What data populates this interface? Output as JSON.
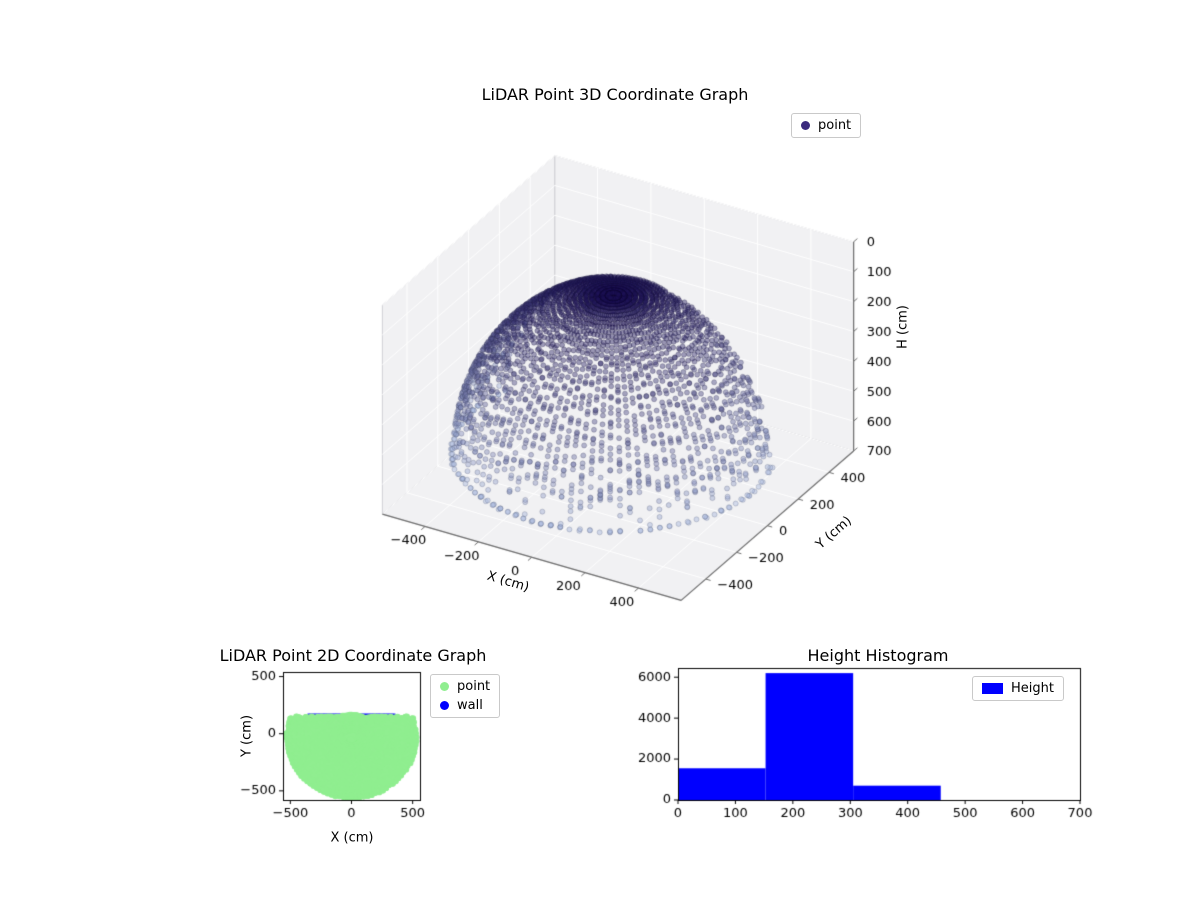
{
  "chart_data": [
    {
      "id": "lidar_3d",
      "type": "scatter3d",
      "title": "LiDAR Point 3D Coordinate Graph",
      "xlabel": "X (cm)",
      "ylabel": "Y (cm)",
      "zlabel": "H (cm)",
      "xlim": [
        -560,
        560
      ],
      "ylim": [
        -560,
        560
      ],
      "zlim": [
        0,
        700
      ],
      "zaxis_inverted": true,
      "xticks": [
        -400,
        -200,
        0,
        200,
        400
      ],
      "yticks": [
        -400,
        -200,
        0,
        200,
        400
      ],
      "zticks": [
        0,
        100,
        200,
        300,
        400,
        500,
        600,
        700
      ],
      "view": {
        "elev": 30,
        "azim": -60
      },
      "grid": true,
      "pane_color": "#f1f1f3",
      "grid_color": "#ffffff",
      "edge_color": "#cfcfd4",
      "spine_color": "#6f6f6f",
      "legend": {
        "position": "upper right",
        "items": [
          {
            "label": "point",
            "color": "#3b2a7d",
            "marker": "circle"
          }
        ]
      },
      "point_cloud": {
        "description": "LiDAR hemispherical scan dome; points colored dark indigo near H=60 (top) fading to light blue near H=580 (rim), with an open sector facing +Y",
        "center_xy": [
          0,
          -30
        ],
        "radius_cm": 520,
        "rim_height_cm": 580,
        "apex_height_cm": 60,
        "azimuth_step_deg": 3.6,
        "elev_min_deg": 2,
        "elev_max_deg": 88,
        "elev_step_deg": 2,
        "open_sector": {
          "y_greater_than": 150,
          "except_above_elev_deg": 68
        },
        "color_top": "#1d1257",
        "color_rim": "#a9b9de",
        "alpha": 0.45,
        "marker_radius_px": 2.5,
        "seed": 7
      }
    },
    {
      "id": "lidar_2d",
      "type": "scatter",
      "title": "LiDAR Point 2D Coordinate Graph",
      "xlabel": "X (cm)",
      "ylabel": "Y (cm)",
      "xlim": [
        -560,
        560
      ],
      "ylim": [
        -580,
        540
      ],
      "xticks": [
        -500,
        0,
        500
      ],
      "yticks": [
        -500,
        0,
        500
      ],
      "legend": {
        "position": "outside upper right",
        "items": [
          {
            "label": "point",
            "color": "#90ee90",
            "marker": "circle"
          },
          {
            "label": "wall",
            "color": "#0000ff",
            "marker": "circle"
          }
        ]
      },
      "series": [
        {
          "name": "wall",
          "color": "#0000ff",
          "marker_radius_px": 2.8,
          "geometry": {
            "line_y": 152,
            "x_from": -350,
            "x_to": 350,
            "step": 14
          }
        },
        {
          "name": "point",
          "color": "#90ee90",
          "marker_radius_px": 3.2,
          "geometry": "xy projection of the 3D dome point cloud (filled half-disc from about y=150 down to y=-550, x from -520 to 520)"
        }
      ]
    },
    {
      "id": "height_histogram",
      "type": "bar",
      "title": "Height Histogram",
      "bin_edges": [
        0,
        152.5,
        305,
        457.5
      ],
      "counts": [
        1550,
        6200,
        700
      ],
      "xlim": [
        0,
        700
      ],
      "ylim": [
        0,
        6450
      ],
      "xticks": [
        0,
        100,
        200,
        300,
        400,
        500,
        600,
        700
      ],
      "yticks": [
        0,
        2000,
        4000,
        6000
      ],
      "bar_color": "#0000ff",
      "legend": {
        "position": "upper right",
        "items": [
          {
            "label": "Height",
            "color": "#0000ff",
            "marker": "rect"
          }
        ]
      }
    }
  ]
}
